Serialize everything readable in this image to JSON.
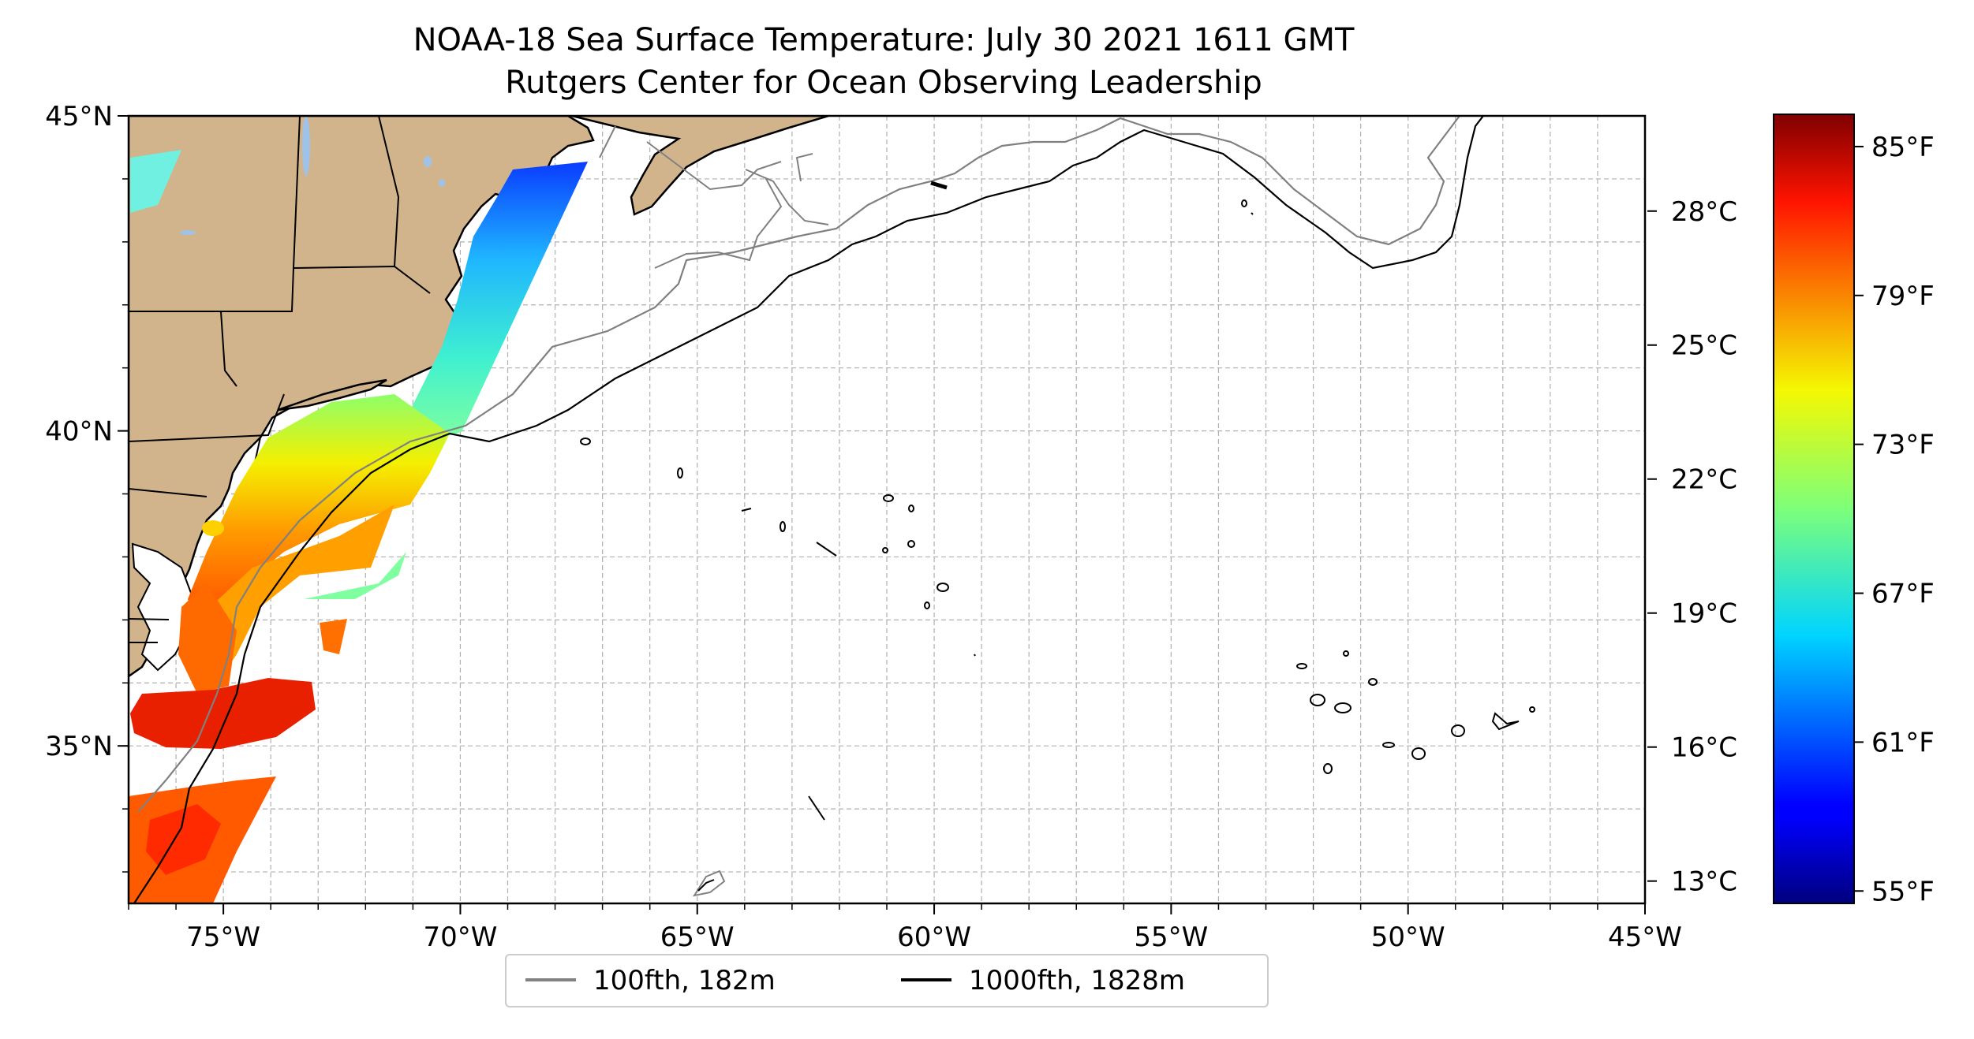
{
  "title": {
    "line1": "NOAA-18 Sea Surface Temperature: July 30 2021 1611 GMT",
    "line2": "Rutgers Center for Ocean Observing Leadership"
  },
  "map": {
    "lon_range": [
      -77,
      -45
    ],
    "lat_range": [
      32.5,
      45
    ],
    "lon_ticks": [
      {
        "value": -75,
        "label": "75°W"
      },
      {
        "value": -70,
        "label": "70°W"
      },
      {
        "value": -65,
        "label": "65°W"
      },
      {
        "value": -60,
        "label": "60°W"
      },
      {
        "value": -55,
        "label": "55°W"
      },
      {
        "value": -50,
        "label": "50°W"
      },
      {
        "value": -45,
        "label": "45°W"
      }
    ],
    "lat_ticks": [
      {
        "value": 35,
        "label": "35°N"
      },
      {
        "value": 40,
        "label": "40°N"
      },
      {
        "value": 45,
        "label": "45°N"
      }
    ],
    "gridlines": true,
    "land_color": "#d2b48c",
    "water_color": "#ffffff"
  },
  "legend": {
    "placement": "bottom-center",
    "items": [
      {
        "label": "100fth, 182m",
        "color": "#808080"
      },
      {
        "label": "1000fth, 1828m",
        "color": "#000000"
      }
    ]
  },
  "colorbar": {
    "colormap": "jet",
    "range_f": [
      54.5,
      86.3
    ],
    "celsius_ticks": [
      {
        "value": 13,
        "label": "13°C"
      },
      {
        "value": 16,
        "label": "16°C"
      },
      {
        "value": 19,
        "label": "19°C"
      },
      {
        "value": 22,
        "label": "22°C"
      },
      {
        "value": 25,
        "label": "25°C"
      },
      {
        "value": 28,
        "label": "28°C"
      }
    ],
    "fahrenheit_ticks": [
      {
        "value": 55,
        "label": "55°F"
      },
      {
        "value": 61,
        "label": "61°F"
      },
      {
        "value": 67,
        "label": "67°F"
      },
      {
        "value": 73,
        "label": "73°F"
      },
      {
        "value": 79,
        "label": "79°F"
      },
      {
        "value": 85,
        "label": "85°F"
      }
    ]
  }
}
